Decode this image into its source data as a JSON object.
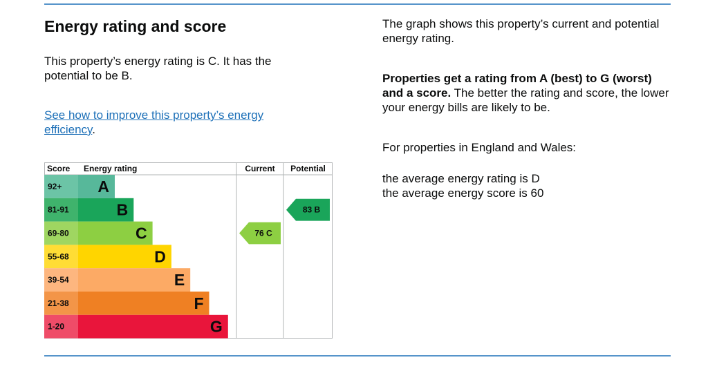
{
  "heading": "Energy rating and score",
  "intro": "This property’s energy rating is C. It has the potential to be B.",
  "link_text": "See how to improve this property’s energy efficiency",
  "link_suffix": ".",
  "right": {
    "graph_desc": "The graph shows this property’s current and potential energy rating.",
    "bold_lead": "Properties get a rating from A (best) to G (worst) and a score.",
    "rest": " The better the rating and score, the lower your energy bills are likely to be.",
    "region": "For properties in England and Wales:",
    "avg_rating": "the average energy rating is D",
    "avg_score": "the average energy score is 60"
  },
  "chart_data": {
    "type": "bar",
    "headers": {
      "score": "Score",
      "rating": "Energy rating",
      "current": "Current",
      "potential": "Potential"
    },
    "bands": [
      {
        "letter": "A",
        "range": "92+",
        "color": "#57b89a",
        "score_bg": "#6cc4a6"
      },
      {
        "letter": "B",
        "range": "81-91",
        "color": "#1aa55a",
        "score_bg": "#3fb36c"
      },
      {
        "letter": "C",
        "range": "69-80",
        "color": "#8dcf42",
        "score_bg": "#9fd661"
      },
      {
        "letter": "D",
        "range": "55-68",
        "color": "#ffd500",
        "score_bg": "#ffdd35"
      },
      {
        "letter": "E",
        "range": "39-54",
        "color": "#fcaa65",
        "score_bg": "#fdb67f"
      },
      {
        "letter": "F",
        "range": "21-38",
        "color": "#ef8023",
        "score_bg": "#f39548"
      },
      {
        "letter": "G",
        "range": "1-20",
        "color": "#e9153b",
        "score_bg": "#ef4c68"
      }
    ],
    "current": {
      "score": 76,
      "band": "C",
      "label": "76 C",
      "color": "#8dcf42"
    },
    "potential": {
      "score": 83,
      "band": "B",
      "label": "83 B",
      "color": "#1aa55a"
    }
  }
}
